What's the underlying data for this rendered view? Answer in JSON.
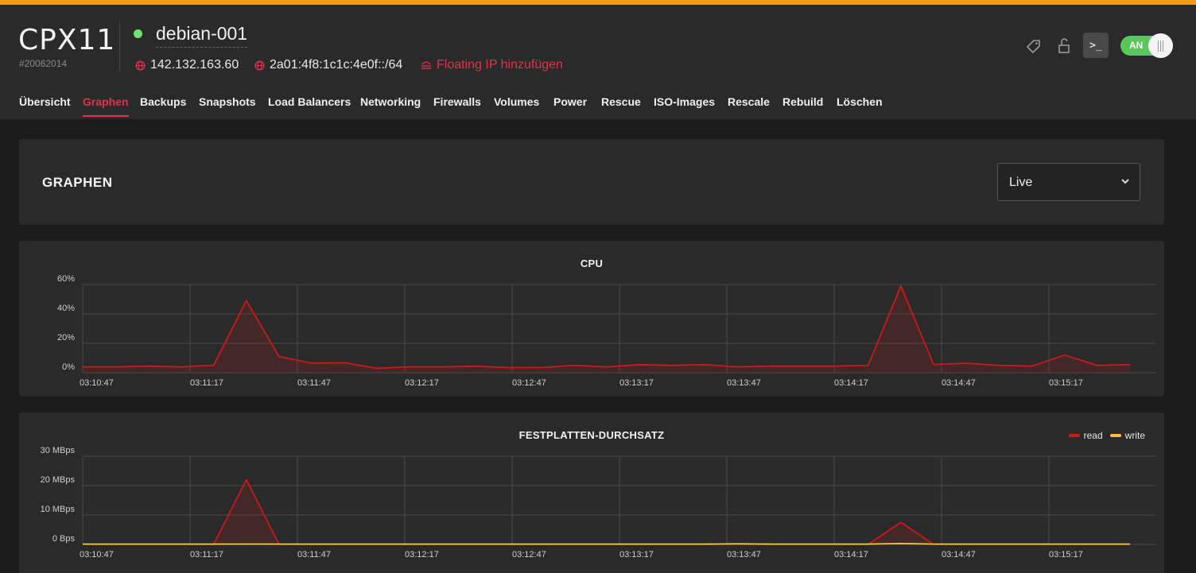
{
  "server": {
    "type": "CPX11",
    "id": "#20062014",
    "name": "debian-001",
    "status_color": "#6fe36f",
    "ipv4": "142.132.163.60",
    "ipv6": "2a01:4f8:1c1c:4e0f::/64",
    "floating_ip_label": "Floating IP hinzufügen",
    "power_label": "AN",
    "console_glyph": ">_"
  },
  "header_icons": [
    "tag-icon",
    "lock-open-icon",
    "console-icon"
  ],
  "tabs": [
    {
      "label": "Übersicht",
      "active": false
    },
    {
      "label": "Graphen",
      "active": true
    },
    {
      "label": "Backups",
      "active": false
    },
    {
      "label": "Snapshots",
      "active": false
    },
    {
      "label": "Load Balancers",
      "active": false
    },
    {
      "label": "Networking",
      "active": false
    },
    {
      "label": "Firewalls",
      "active": false
    },
    {
      "label": "Volumes",
      "active": false
    },
    {
      "label": "Power",
      "active": false
    },
    {
      "label": "Rescue",
      "active": false
    },
    {
      "label": "ISO-Images",
      "active": false
    },
    {
      "label": "Rescale",
      "active": false
    },
    {
      "label": "Rebuild",
      "active": false
    },
    {
      "label": "Löschen",
      "active": false
    }
  ],
  "section": {
    "title": "GRAPHEN",
    "range_value": "Live"
  },
  "colors": {
    "accent": "#e0344a",
    "topbar": "#f39c12",
    "read": "#cc1a1a",
    "write": "#f7c244",
    "power_on": "#58c75c"
  },
  "chart_data": [
    {
      "type": "area",
      "title": "CPU",
      "x_ticks": [
        "03:10:47",
        "03:11:17",
        "03:11:47",
        "03:12:17",
        "03:12:47",
        "03:13:17",
        "03:13:47",
        "03:14:17",
        "03:14:47",
        "03:15:17"
      ],
      "y_ticks": [
        "60%",
        "40%",
        "20%",
        "0%"
      ],
      "ylim": [
        0,
        60
      ],
      "x": [
        0,
        1,
        2,
        3,
        4,
        5,
        6,
        7,
        8,
        9,
        10,
        11,
        12,
        13,
        14,
        15,
        16,
        17,
        18,
        19,
        20,
        21,
        22,
        23,
        24,
        25,
        26,
        27,
        28,
        29,
        30,
        31,
        32,
        33,
        34,
        35,
        36,
        37,
        38,
        39
      ],
      "series": [
        {
          "color": "#cc1a1a",
          "values": [
            4,
            4,
            4.5,
            4,
            5,
            49,
            11,
            6.5,
            6.8,
            3,
            4,
            4,
            4.5,
            3.5,
            3.5,
            5,
            4,
            5.5,
            5,
            5.5,
            4,
            4.5,
            4.5,
            4.5,
            5,
            59,
            5.5,
            6.5,
            5,
            4.5,
            12,
            5,
            5.5,
            null,
            null,
            null,
            null,
            null,
            null,
            null
          ]
        }
      ],
      "grid": true,
      "legend": "none"
    },
    {
      "type": "area",
      "title": "FESTPLATTEN-DURCHSATZ",
      "x_ticks": [
        "03:10:47",
        "03:11:17",
        "03:11:47",
        "03:12:17",
        "03:12:47",
        "03:13:17",
        "03:13:47",
        "03:14:17",
        "03:14:47",
        "03:15:17"
      ],
      "y_ticks": [
        "30 MBps",
        "20 MBps",
        "10 MBps",
        "0 Bps"
      ],
      "ylim": [
        0,
        30
      ],
      "series": [
        {
          "name": "read",
          "color": "#cc1a1a",
          "values": [
            0,
            0,
            0,
            0,
            0,
            22,
            0,
            0,
            0,
            0,
            0,
            0,
            0,
            0,
            0,
            0,
            0,
            0,
            0,
            0,
            0,
            0,
            0,
            0,
            0,
            7.5,
            0,
            0,
            0,
            0,
            0,
            0,
            0
          ]
        },
        {
          "name": "write",
          "color": "#f7c244",
          "values": [
            0.1,
            0.1,
            0.1,
            0.1,
            0.1,
            0.1,
            0.1,
            0.1,
            0.1,
            0.1,
            0.1,
            0.1,
            0.1,
            0.1,
            0.1,
            0.1,
            0.1,
            0.1,
            0.1,
            0.1,
            0.2,
            0.1,
            0.1,
            0.1,
            0.1,
            0.3,
            0.1,
            0.1,
            0.1,
            0.1,
            0.1,
            0.1,
            0.1
          ]
        }
      ],
      "grid": true,
      "legend": "top-right"
    }
  ]
}
